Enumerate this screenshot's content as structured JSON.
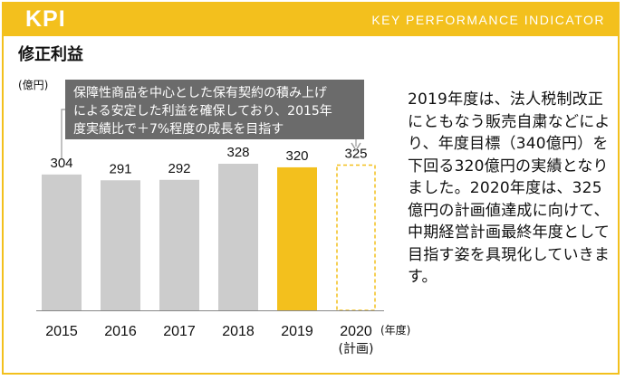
{
  "header": {
    "title": "KPI",
    "subtitle": "KEY PERFORMANCE INDICATOR"
  },
  "section_title": "修正利益",
  "description": "2019年度は、法人税制改正にともなう販売自粛などにより、年度目標（340億円）を下回る320億円の実績となりました。2020年度は、325億円の計画値達成に向けて、中期経営計画最終年度として目指す姿を具現化していきます。",
  "colors": {
    "accent": "#f3c01d",
    "bar_gray": "#cccccc",
    "callout_bg": "#6b6b6b",
    "plan_border": "#f3c01d"
  },
  "chart_data": {
    "type": "bar",
    "categories": [
      "2015",
      "2016",
      "2017",
      "2018",
      "2019",
      "2020"
    ],
    "category_sub": [
      "",
      "",
      "",
      "",
      "",
      "(計画)"
    ],
    "values": [
      304,
      291,
      292,
      328,
      320,
      325
    ],
    "data_labels": [
      "304",
      "291",
      "292",
      "328",
      "320",
      "325"
    ],
    "bar_styles": [
      "actual",
      "actual",
      "actual",
      "actual",
      "highlight",
      "plan"
    ],
    "title": "修正利益",
    "ylabel": "(億円)",
    "xlabel": "(年度)",
    "ylim": [
      0,
      370
    ],
    "grid": false,
    "annotation": {
      "lines": [
        "保障性商品を中心とした保有契約の積み上げ",
        "による安定した利益を確保しており、2015年",
        "度実績比で＋7%程度の成長を目指す"
      ],
      "from": "2015",
      "to": "2020"
    }
  }
}
